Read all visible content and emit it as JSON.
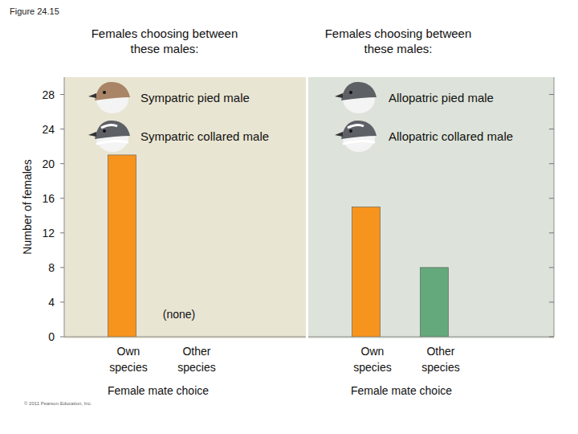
{
  "header": {
    "figure_label": "Figure 24.15"
  },
  "chart_data": [
    {
      "type": "bar",
      "title": "Females choosing between these males:",
      "males": [
        "Sympatric pied male",
        "Sympatric collared male"
      ],
      "categories": [
        "Own species",
        "Other species"
      ],
      "values": [
        21,
        0
      ],
      "color": "#f7941d",
      "annotation": "(none)",
      "x_label": "Female mate choice",
      "y_label": "Number of females",
      "ylim": [
        0,
        30
      ],
      "yticks": [
        0,
        4,
        8,
        12,
        16,
        20,
        24,
        28
      ],
      "grid": false,
      "tick_labels": true
    },
    {
      "type": "bar",
      "title": "Females choosing between these males:",
      "males": [
        "Allopatric pied male",
        "Allopatric collared male"
      ],
      "categories": [
        "Own species",
        "Other species"
      ],
      "values": [
        15,
        8
      ],
      "colors": [
        "#f7941d",
        "#63a97c"
      ],
      "x_label": "Female mate choice",
      "ylim": [
        0,
        30
      ],
      "yticks": [
        0,
        4,
        8,
        12,
        16,
        20,
        24,
        28
      ],
      "grid": false,
      "tick_labels": "x"
    }
  ],
  "footer": "© 2011 Pearson Education, Inc."
}
